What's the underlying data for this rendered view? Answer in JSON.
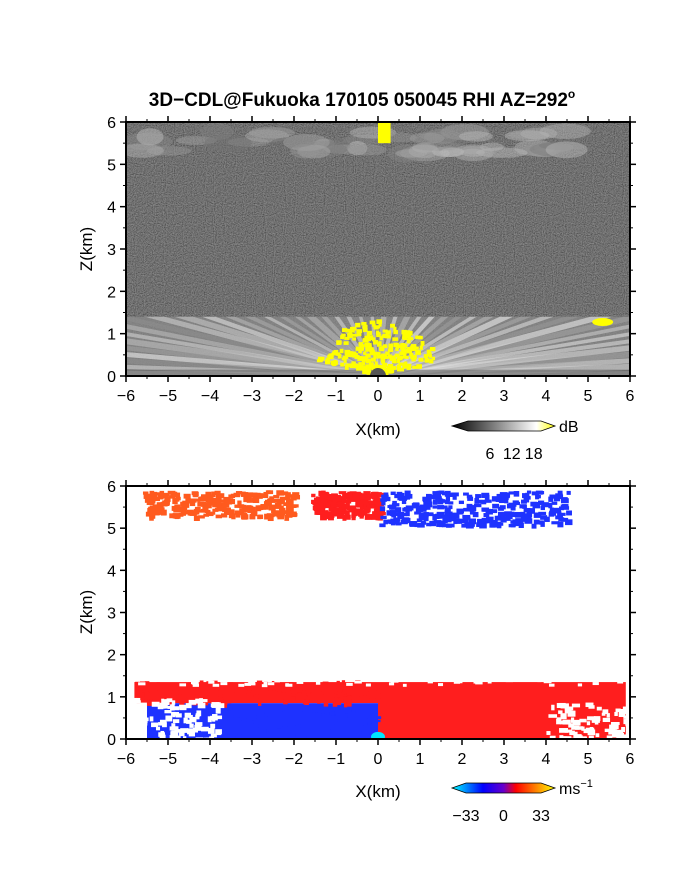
{
  "title": "3D−CDL@Fukuoka 170105 050045 RHI AZ=292",
  "title_degree": "o",
  "chart_data": [
    {
      "type": "heatmap",
      "quantity": "reflectivity",
      "xlabel": "X(km)",
      "ylabel": "Z(km)",
      "xlim": [
        -6,
        6
      ],
      "ylim": [
        0,
        6
      ],
      "xticks": [
        "−6",
        "−5",
        "−4",
        "−3",
        "−2",
        "−1",
        "0",
        "1",
        "2",
        "3",
        "4",
        "5",
        "6"
      ],
      "yticks": [
        "0",
        "1",
        "2",
        "3",
        "4",
        "5",
        "6"
      ],
      "colorbar": {
        "unit": "dB",
        "ticks": [
          "6",
          "12",
          "18"
        ],
        "range": [
          0,
          20
        ],
        "colors": [
          "#000000",
          "#ffffff",
          "#ffff00"
        ]
      },
      "features": [
        {
          "name": "lower-echo-layer",
          "x": [
            -6,
            6
          ],
          "z": [
            0,
            1.4
          ],
          "level_db": 10
        },
        {
          "name": "upper-echo-layer",
          "x": [
            -5.8,
            4.5
          ],
          "z": [
            5.1,
            5.9
          ],
          "level_db": 8
        },
        {
          "name": "strong-echo-column",
          "x": [
            0.0,
            0.3
          ],
          "z": [
            5.5,
            6.0
          ],
          "level_db": 20
        },
        {
          "name": "strong-echo-patch",
          "x": [
            5.1,
            5.6
          ],
          "z": [
            1.2,
            1.35
          ],
          "level_db": 20
        },
        {
          "name": "near-radar-fan",
          "x": [
            -1.5,
            1.5
          ],
          "z": [
            0,
            1.3
          ],
          "level_db": 20
        }
      ]
    },
    {
      "type": "heatmap",
      "quantity": "doppler-velocity",
      "xlabel": "X(km)",
      "ylabel": "Z(km)",
      "xlim": [
        -6,
        6
      ],
      "ylim": [
        0,
        6
      ],
      "xticks": [
        "−6",
        "−5",
        "−4",
        "−3",
        "−2",
        "−1",
        "0",
        "1",
        "2",
        "3",
        "4",
        "5",
        "6"
      ],
      "yticks": [
        "0",
        "1",
        "2",
        "3",
        "4",
        "5",
        "6"
      ],
      "colorbar": {
        "unit": "ms",
        "unit_exponent": "−1",
        "ticks": [
          "−33",
          "0",
          "33"
        ],
        "range": [
          -33,
          33
        ],
        "colors": [
          "#00ffff",
          "#0000ff",
          "#ff0000",
          "#ffff00"
        ]
      },
      "features": [
        {
          "name": "upper-layer-west",
          "x": [
            -5.6,
            -2.0
          ],
          "z": [
            5.3,
            5.9
          ],
          "velocity": 15
        },
        {
          "name": "upper-layer-central",
          "x": [
            -1.6,
            0.0
          ],
          "z": [
            5.3,
            5.9
          ],
          "velocity": 5
        },
        {
          "name": "upper-layer-east",
          "x": [
            0.0,
            4.5
          ],
          "z": [
            5.1,
            5.9
          ],
          "velocity": -8
        },
        {
          "name": "lower-layer-west-top",
          "x": [
            -5.8,
            0.0
          ],
          "z": [
            0.85,
            1.4
          ],
          "velocity": 5
        },
        {
          "name": "lower-layer-west-bottom",
          "x": [
            -5.5,
            0.0
          ],
          "z": [
            0.0,
            0.85
          ],
          "velocity": -8
        },
        {
          "name": "lower-layer-east",
          "x": [
            0.0,
            5.9
          ],
          "z": [
            0.0,
            1.4
          ],
          "velocity": 5
        }
      ]
    }
  ]
}
